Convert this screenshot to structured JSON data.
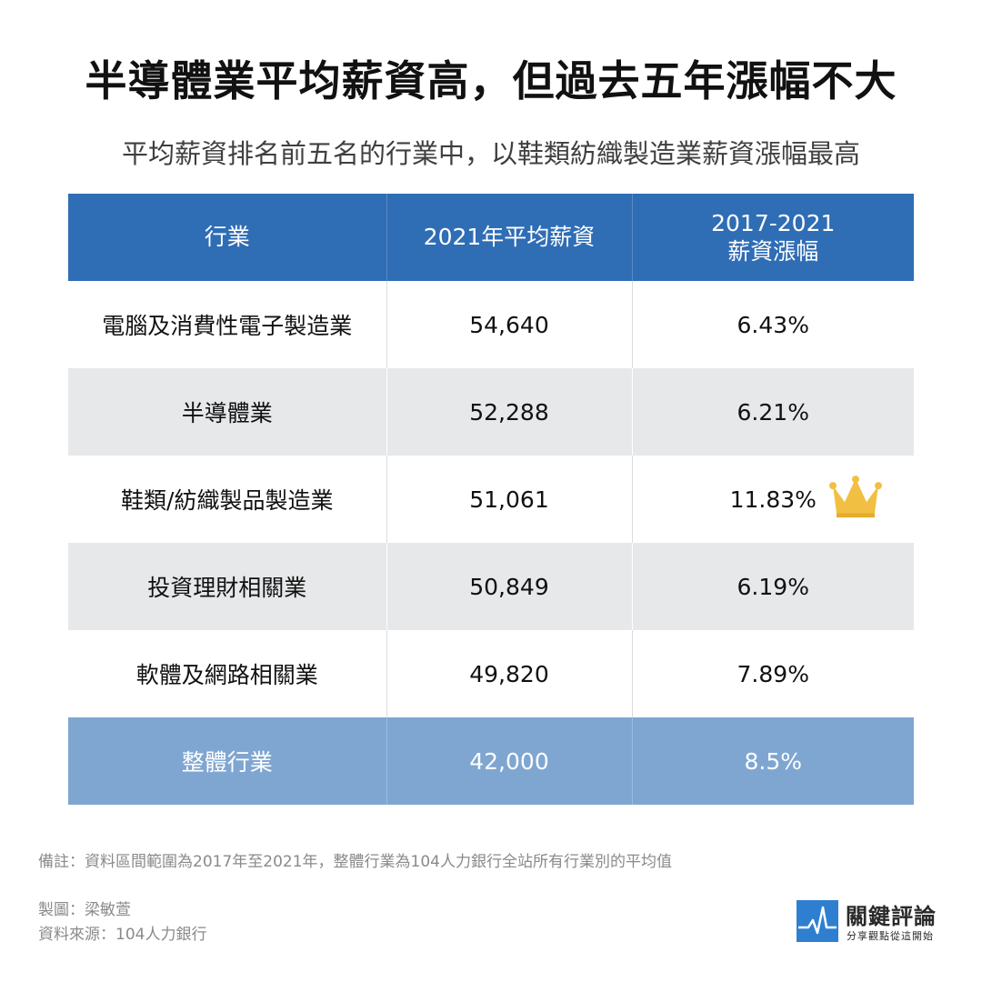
{
  "title": "半導體業平均薪資高，但過去五年漲幅不大",
  "subtitle": "平均薪資排名前五名的行業中，以鞋類紡織製造業薪資漲幅最高",
  "chart_data": {
    "type": "table",
    "columns": [
      "行業",
      "2021年平均薪資",
      "2017-2021",
      "薪資漲幅"
    ],
    "rows": [
      {
        "industry": "電腦及消費性電子製造業",
        "salary": "54,640",
        "growth": "6.43%"
      },
      {
        "industry": "半導體業",
        "salary": "52,288",
        "growth": "6.21%"
      },
      {
        "industry": "鞋類/紡織製品製造業",
        "salary": "51,061",
        "growth": "11.83%",
        "highlight_icon": "crown-icon"
      },
      {
        "industry": "投資理財相關業",
        "salary": "50,849",
        "growth": "6.19%"
      },
      {
        "industry": "軟體及網路相關業",
        "salary": "49,820",
        "growth": "7.89%"
      }
    ],
    "total": {
      "industry": "整體行業",
      "salary": "42,000",
      "growth": "8.5%"
    }
  },
  "colors": {
    "header_bg": "#2f6db5",
    "row_alt_bg": "#e6e8ea",
    "total_bg": "#7fa6d1",
    "crown": "#f1c043",
    "logo_blue": "#2f7fd0"
  },
  "note": "備註：資料區間範圍為2017年至2021年，整體行業為104人力銀行全站所有行業別的平均值",
  "credits": {
    "designer": "製圖：梁敏萱",
    "source": "資料來源：104人力銀行"
  },
  "logo": {
    "name": "關鍵評論",
    "slogan": "分享觀點從這開始",
    "icon": "pulse-line-icon"
  }
}
